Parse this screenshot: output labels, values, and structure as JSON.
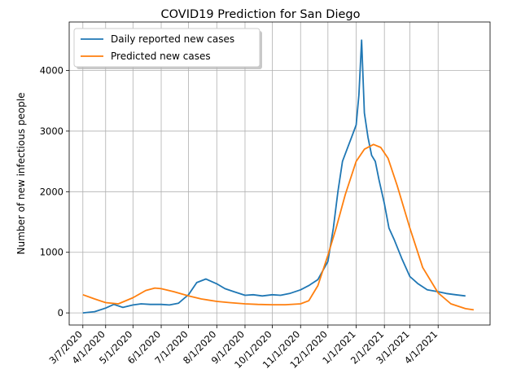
{
  "chart_data": {
    "type": "line",
    "title": "COVID19 Prediction for San Diego",
    "xlabel": "",
    "ylabel": "Number of new infectious people",
    "x_range": [
      "2020-02-21",
      "2021-05-28"
    ],
    "ylim": [
      -200,
      4800
    ],
    "grid": true,
    "legend_placement": "top-left",
    "x_ticks": [
      {
        "date": "2020-03-07",
        "label": "3/7/2020"
      },
      {
        "date": "2020-04-01",
        "label": "4/1/2020"
      },
      {
        "date": "2020-05-01",
        "label": "5/1/2020"
      },
      {
        "date": "2020-06-01",
        "label": "6/1/2020"
      },
      {
        "date": "2020-07-01",
        "label": "7/1/2020"
      },
      {
        "date": "2020-08-01",
        "label": "8/1/2020"
      },
      {
        "date": "2020-09-01",
        "label": "9/1/2020"
      },
      {
        "date": "2020-10-01",
        "label": "10/1/2020"
      },
      {
        "date": "2020-11-01",
        "label": "11/1/2020"
      },
      {
        "date": "2020-12-01",
        "label": "12/1/2020"
      },
      {
        "date": "2021-01-01",
        "label": "1/1/2021"
      },
      {
        "date": "2021-02-01",
        "label": "2/1/2021"
      },
      {
        "date": "2021-03-01",
        "label": "3/1/2021"
      },
      {
        "date": "2021-04-01",
        "label": "4/1/2021"
      }
    ],
    "y_ticks": [
      {
        "value": 0,
        "label": "0"
      },
      {
        "value": 1000,
        "label": "1000"
      },
      {
        "value": 2000,
        "label": "2000"
      },
      {
        "value": 3000,
        "label": "3000"
      },
      {
        "value": 4000,
        "label": "4000"
      }
    ],
    "series": [
      {
        "name": "Daily reported new cases",
        "color": "#1f77b4",
        "x": [
          "2020-03-07",
          "2020-03-20",
          "2020-04-01",
          "2020-04-10",
          "2020-04-20",
          "2020-05-01",
          "2020-05-10",
          "2020-05-20",
          "2020-06-01",
          "2020-06-10",
          "2020-06-20",
          "2020-06-27",
          "2020-07-01",
          "2020-07-10",
          "2020-07-20",
          "2020-08-01",
          "2020-08-10",
          "2020-08-20",
          "2020-09-01",
          "2020-09-10",
          "2020-09-20",
          "2020-10-01",
          "2020-10-10",
          "2020-10-20",
          "2020-11-01",
          "2020-11-10",
          "2020-11-20",
          "2020-12-01",
          "2020-12-07",
          "2020-12-12",
          "2020-12-17",
          "2020-12-22",
          "2020-12-27",
          "2021-01-01",
          "2021-01-04",
          "2021-01-07",
          "2021-01-10",
          "2021-01-14",
          "2021-01-18",
          "2021-01-22",
          "2021-01-26",
          "2021-02-01",
          "2021-02-06",
          "2021-02-12",
          "2021-02-20",
          "2021-03-01",
          "2021-03-10",
          "2021-03-20",
          "2021-04-01",
          "2021-04-10",
          "2021-04-20",
          "2021-05-01"
        ],
        "values": [
          0,
          20,
          80,
          140,
          90,
          130,
          150,
          140,
          140,
          130,
          160,
          250,
          300,
          500,
          560,
          480,
          400,
          350,
          290,
          300,
          280,
          300,
          290,
          320,
          380,
          450,
          550,
          850,
          1400,
          2000,
          2500,
          2700,
          2900,
          3100,
          3600,
          4500,
          3300,
          2900,
          2600,
          2500,
          2200,
          1800,
          1400,
          1200,
          900,
          600,
          480,
          380,
          350,
          320,
          300,
          280
        ]
      },
      {
        "name": "Predicted new cases",
        "color": "#ff7f0e",
        "x": [
          "2020-03-07",
          "2020-03-20",
          "2020-04-01",
          "2020-04-15",
          "2020-05-01",
          "2020-05-15",
          "2020-05-25",
          "2020-06-01",
          "2020-06-15",
          "2020-07-01",
          "2020-07-15",
          "2020-08-01",
          "2020-08-15",
          "2020-09-01",
          "2020-09-15",
          "2020-10-01",
          "2020-10-15",
          "2020-11-01",
          "2020-11-10",
          "2020-11-20",
          "2020-12-01",
          "2020-12-10",
          "2020-12-20",
          "2021-01-01",
          "2021-01-10",
          "2021-01-20",
          "2021-01-28",
          "2021-02-05",
          "2021-02-15",
          "2021-03-01",
          "2021-03-15",
          "2021-04-01",
          "2021-04-15",
          "2021-05-01",
          "2021-05-10"
        ],
        "values": [
          300,
          230,
          170,
          150,
          250,
          370,
          410,
          400,
          350,
          280,
          230,
          190,
          170,
          150,
          140,
          135,
          135,
          150,
          200,
          450,
          950,
          1400,
          1950,
          2500,
          2700,
          2780,
          2730,
          2550,
          2100,
          1400,
          750,
          330,
          150,
          70,
          50
        ]
      }
    ]
  }
}
